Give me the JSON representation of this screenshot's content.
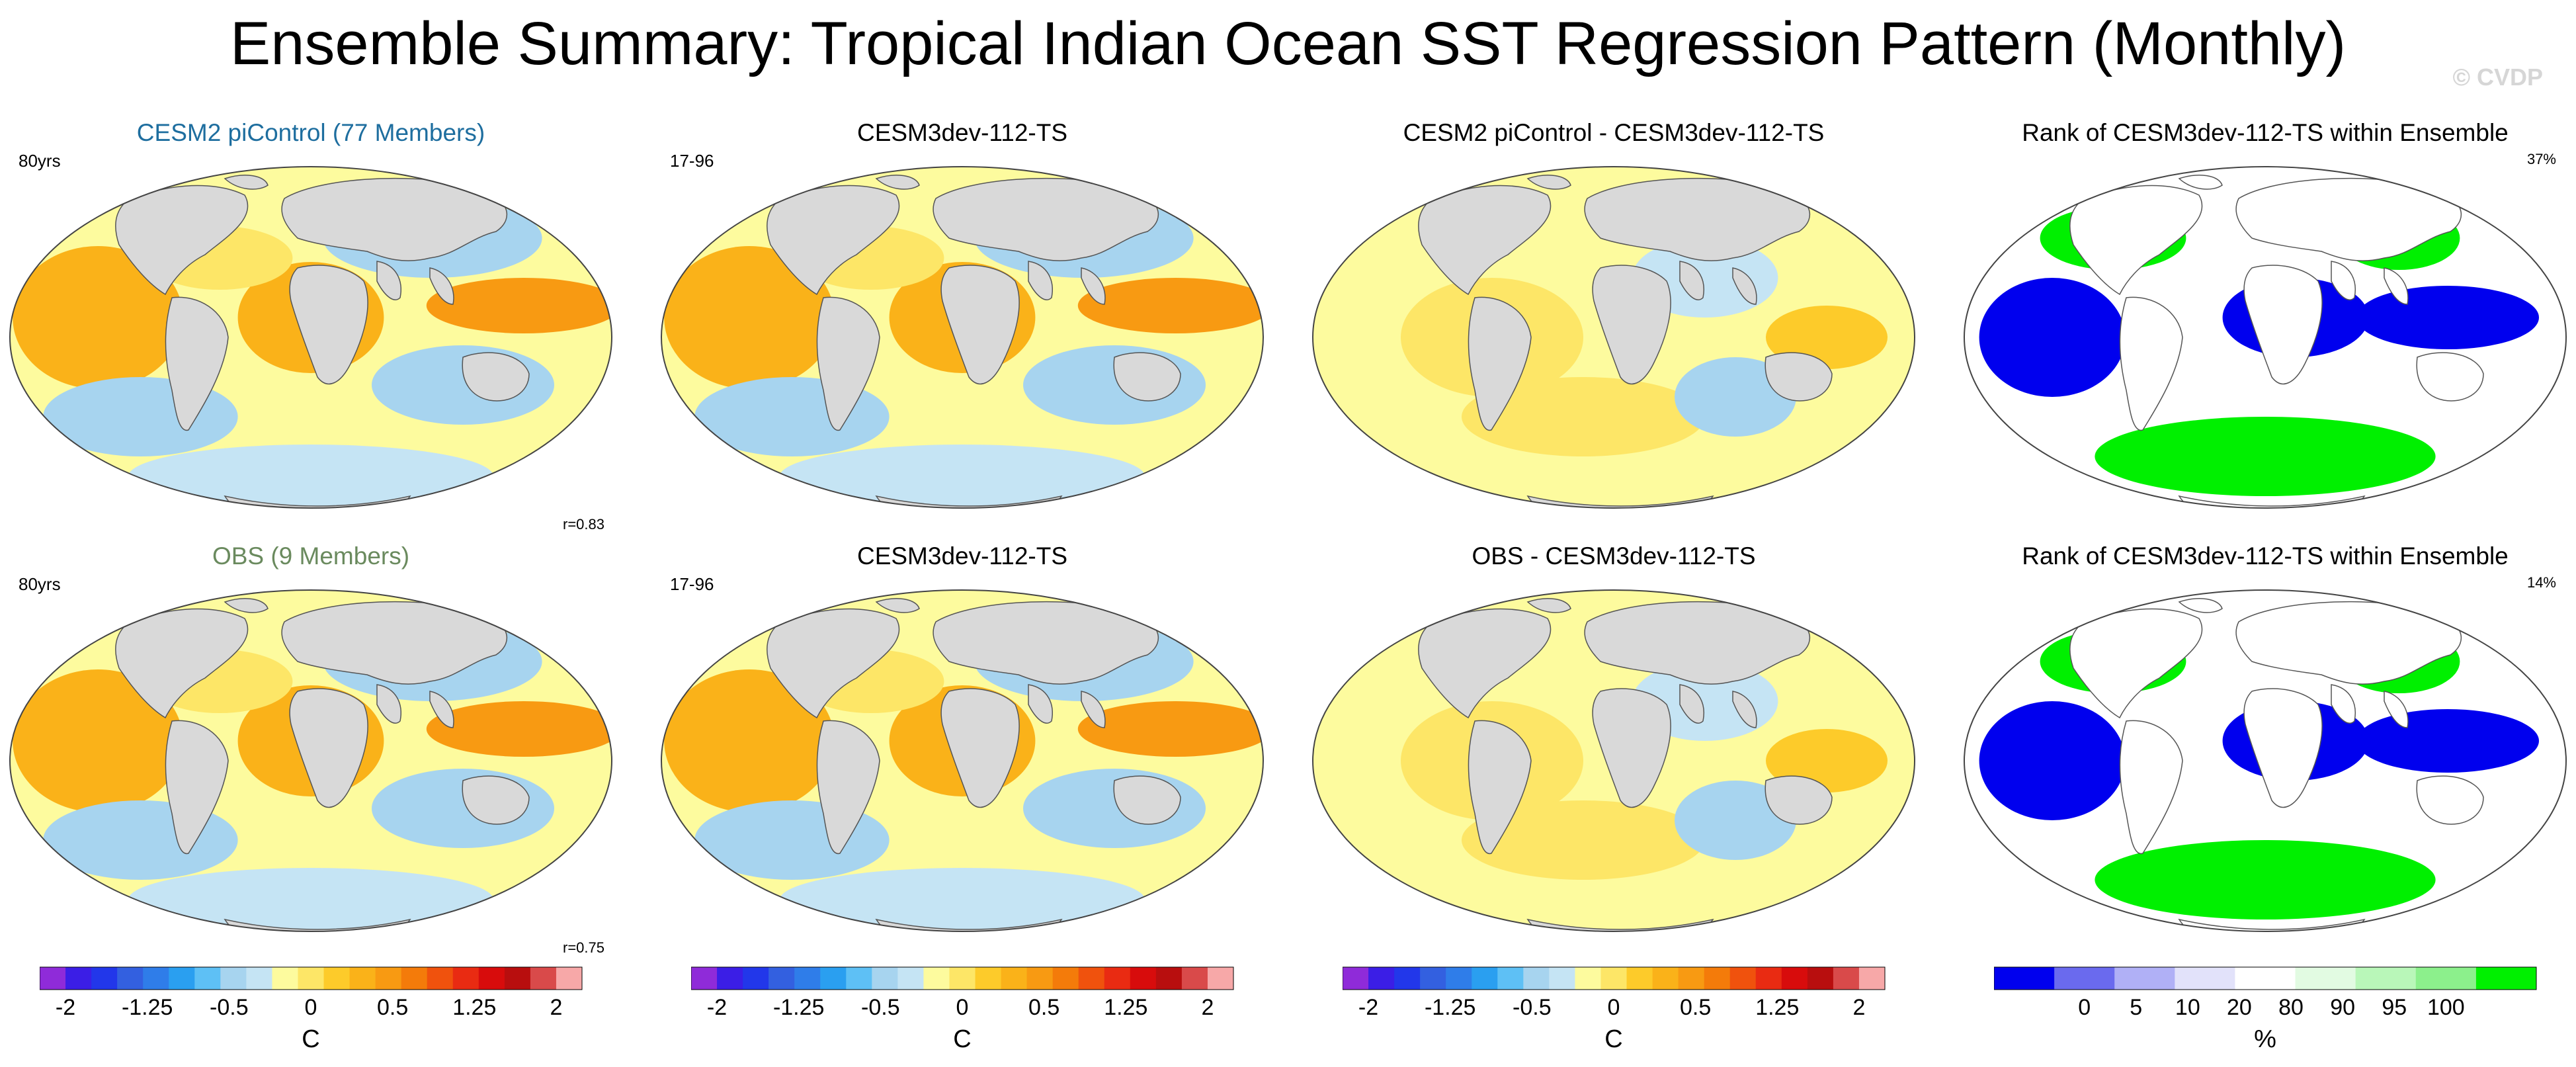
{
  "title": "Ensemble Summary: Tropical Indian Ocean SST Regression Pattern (Monthly)",
  "watermark": "© CVDP",
  "colors": {
    "land": "#d9d9d9",
    "sst_scale": [
      "#8f2bd9",
      "#3b1ee6",
      "#2237ea",
      "#3360e0",
      "#2f7de9",
      "#2a9ff0",
      "#5ec0f5",
      "#a7d4ef",
      "#c5e4f4",
      "#fdfb9e",
      "#fde667",
      "#fdcb2a",
      "#fab219",
      "#f89a12",
      "#f47b0a",
      "#f0520d",
      "#e92b12",
      "#d80c0c",
      "#b80e0e",
      "#d94a4a",
      "#f7a8a8"
    ],
    "rank_scale": [
      "#0000ee",
      "#6a6aee",
      "#b0b0f6",
      "#e2e2fa",
      "#ffffff",
      "#e2fbe2",
      "#b9f7b9",
      "#8cf08c",
      "#00f000"
    ]
  },
  "panels": [
    {
      "id": "p1",
      "title": "CESM2 piControl (77 Members)",
      "title_color": "#1e6e9f",
      "left_note": "80yrs",
      "right_note": "",
      "r_value": "r=0.83",
      "kind": "sst"
    },
    {
      "id": "p2",
      "title": "CESM3dev-112-TS",
      "title_color": "#000000",
      "left_note": "17-96",
      "right_note": "",
      "r_value": "",
      "kind": "sst"
    },
    {
      "id": "p3",
      "title": "CESM2 piControl - CESM3dev-112-TS",
      "title_color": "#000000",
      "left_note": "",
      "right_note": "",
      "r_value": "",
      "kind": "diff"
    },
    {
      "id": "p4",
      "title": "Rank of CESM3dev-112-TS within Ensemble",
      "title_color": "#000000",
      "left_note": "",
      "right_note": "37%",
      "r_value": "",
      "kind": "rank"
    },
    {
      "id": "p5",
      "title": "OBS (9 Members)",
      "title_color": "#6a8a5e",
      "left_note": "80yrs",
      "right_note": "",
      "r_value": "r=0.75",
      "kind": "sst"
    },
    {
      "id": "p6",
      "title": "CESM3dev-112-TS",
      "title_color": "#000000",
      "left_note": "17-96",
      "right_note": "",
      "r_value": "",
      "kind": "sst"
    },
    {
      "id": "p7",
      "title": "OBS - CESM3dev-112-TS",
      "title_color": "#000000",
      "left_note": "",
      "right_note": "",
      "r_value": "",
      "kind": "diff"
    },
    {
      "id": "p8",
      "title": "Rank of CESM3dev-112-TS within Ensemble",
      "title_color": "#000000",
      "left_note": "",
      "right_note": "14%",
      "r_value": "",
      "kind": "rank"
    }
  ],
  "colorbars": [
    {
      "id": "cb1",
      "unit": "C",
      "ticks": [
        "-2",
        "-1.25",
        "-0.5",
        "0",
        "0.5",
        "1.25",
        "2"
      ]
    },
    {
      "id": "cb2",
      "unit": "C",
      "ticks": [
        "-2",
        "-1.25",
        "-0.5",
        "0",
        "0.5",
        "1.25",
        "2"
      ]
    },
    {
      "id": "cb3",
      "unit": "C",
      "ticks": [
        "-2",
        "-1.25",
        "-0.5",
        "0",
        "0.5",
        "1.25",
        "2"
      ]
    },
    {
      "id": "cb4",
      "unit": "%",
      "ticks": [
        "0",
        "5",
        "10",
        "20",
        "80",
        "90",
        "95",
        "100"
      ]
    }
  ],
  "chart_data": [
    {
      "type": "heatmap",
      "title": "CESM2 piControl (77 Members)",
      "annotations": [
        "80yrs",
        "r=0.83"
      ],
      "colorbar": {
        "label": "C",
        "range": [
          -2,
          2
        ]
      }
    },
    {
      "type": "heatmap",
      "title": "CESM3dev-112-TS",
      "annotations": [
        "17-96"
      ],
      "colorbar": {
        "label": "C",
        "range": [
          -2,
          2
        ]
      }
    },
    {
      "type": "heatmap",
      "title": "CESM2 piControl - CESM3dev-112-TS",
      "annotations": [],
      "colorbar": {
        "label": "C",
        "range": [
          -2,
          2
        ]
      }
    },
    {
      "type": "heatmap",
      "title": "Rank of CESM3dev-112-TS within Ensemble",
      "annotations": [
        "37%"
      ],
      "colorbar": {
        "label": "%",
        "ticks": [
          0,
          5,
          10,
          20,
          80,
          90,
          95,
          100
        ]
      }
    },
    {
      "type": "heatmap",
      "title": "OBS (9 Members)",
      "annotations": [
        "80yrs",
        "r=0.75"
      ],
      "colorbar": {
        "label": "C",
        "range": [
          -2,
          2
        ]
      }
    },
    {
      "type": "heatmap",
      "title": "CESM3dev-112-TS",
      "annotations": [
        "17-96"
      ],
      "colorbar": {
        "label": "C",
        "range": [
          -2,
          2
        ]
      }
    },
    {
      "type": "heatmap",
      "title": "OBS - CESM3dev-112-TS",
      "annotations": [],
      "colorbar": {
        "label": "C",
        "range": [
          -2,
          2
        ]
      }
    },
    {
      "type": "heatmap",
      "title": "Rank of CESM3dev-112-TS within Ensemble",
      "annotations": [
        "14%"
      ],
      "colorbar": {
        "label": "%",
        "ticks": [
          0,
          5,
          10,
          20,
          80,
          90,
          95,
          100
        ]
      }
    }
  ]
}
